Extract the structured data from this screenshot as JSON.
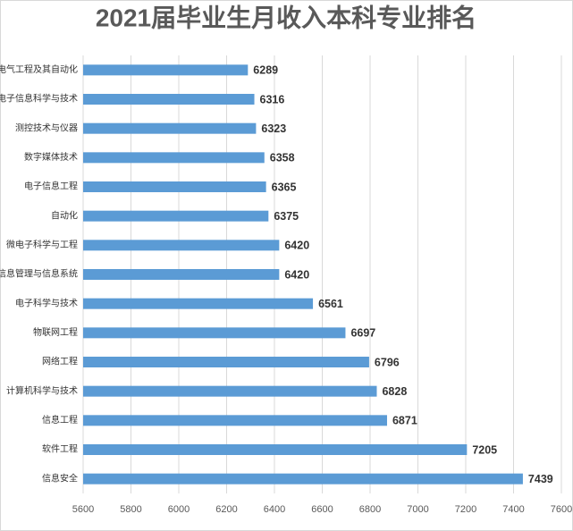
{
  "chart_data": {
    "type": "bar",
    "orientation": "horizontal",
    "title": "2021届毕业生月收入本科专业排名",
    "categories": [
      "电气工程及其自动化",
      "电子信息科学与技术",
      "测控技术与仪器",
      "数字媒体技术",
      "电子信息工程",
      "自动化",
      "微电子科学与工程",
      "信息管理与信息系统",
      "电子科学与技术",
      "物联网工程",
      "网络工程",
      "计算机科学与技术",
      "信息工程",
      "软件工程",
      "信息安全"
    ],
    "values": [
      6289,
      6316,
      6323,
      6358,
      6365,
      6375,
      6420,
      6420,
      6561,
      6697,
      6796,
      6828,
      6871,
      7205,
      7439
    ],
    "color": "#5b9bd5",
    "xlim": [
      5600,
      7600
    ],
    "xticks": [
      5600,
      5800,
      6000,
      6200,
      6400,
      6600,
      6800,
      7000,
      7200,
      7400,
      7600
    ],
    "grid": true
  }
}
